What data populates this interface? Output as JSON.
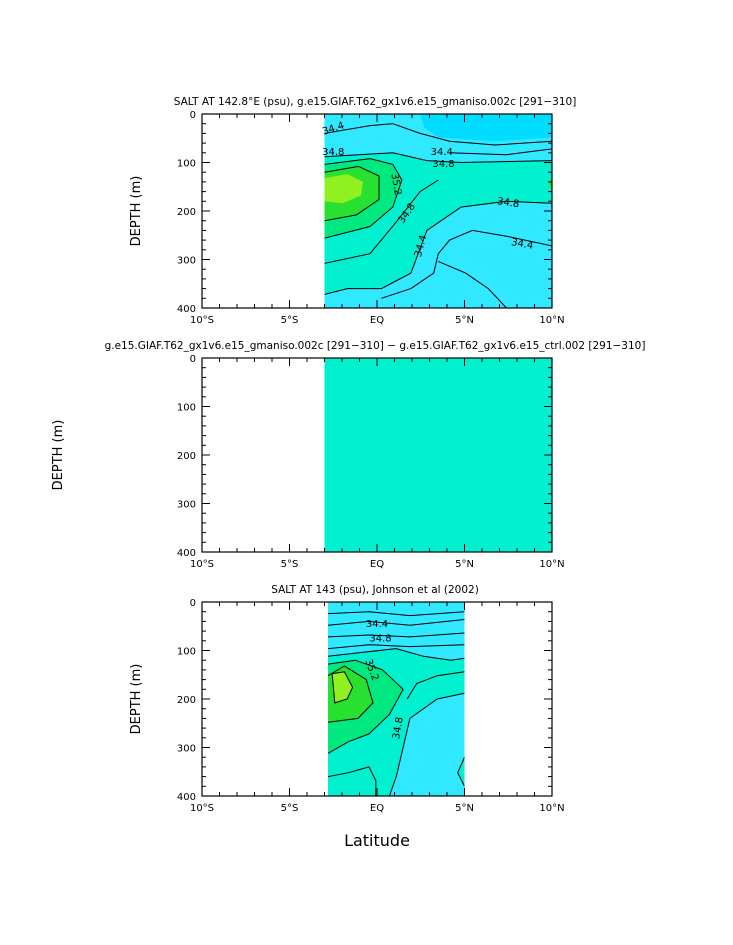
{
  "chart_data": [
    {
      "type": "contour",
      "title": "SALT AT 142.8°E (psu), g.e15.GIAF.T62_gx1v6.e15_gmaniso.002c [291−310]",
      "ylabel": "DEPTH (m)",
      "xlabel": "",
      "x_ticks": [
        {
          "v": -10,
          "label": "10°S"
        },
        {
          "v": -5,
          "label": "5°S"
        },
        {
          "v": 0,
          "label": "EQ"
        },
        {
          "v": 5,
          "label": "5°N"
        },
        {
          "v": 10,
          "label": "10°N"
        }
      ],
      "y_ticks": [
        {
          "v": 0,
          "label": "0"
        },
        {
          "v": 100,
          "label": "100"
        },
        {
          "v": 200,
          "label": "200"
        },
        {
          "v": 300,
          "label": "300"
        },
        {
          "v": 400,
          "label": "400"
        }
      ],
      "xlim": [
        -10,
        10
      ],
      "ylim": [
        0,
        400
      ],
      "data_lat_range": [
        -3,
        10
      ],
      "contour_labels": [
        {
          "text": "34.4",
          "lat": -2.5,
          "depth": 30,
          "angle": -18
        },
        {
          "text": "34.4",
          "lat": 3.7,
          "depth": 78,
          "angle": 0
        },
        {
          "text": "34.8",
          "lat": -2.5,
          "depth": 78,
          "angle": 0
        },
        {
          "text": "34.8",
          "lat": 3.8,
          "depth": 103,
          "angle": 0
        },
        {
          "text": "35.2",
          "lat": 1.1,
          "depth": 145,
          "angle": 80
        },
        {
          "text": "34.8",
          "lat": 1.7,
          "depth": 205,
          "angle": -55
        },
        {
          "text": "34.8",
          "lat": 7.5,
          "depth": 183,
          "angle": 8
        },
        {
          "text": "34.4",
          "lat": 2.5,
          "depth": 272,
          "angle": -75
        },
        {
          "text": "34.4",
          "lat": 8.3,
          "depth": 268,
          "angle": 10
        }
      ]
    },
    {
      "type": "contour",
      "title": "g.e15.GIAF.T62_gx1v6.e15_gmaniso.002c [291−310] − g.e15.GIAF.T62_gx1v6.e15_ctrl.002 [291−310]",
      "ylabel": "DEPTH (m)",
      "xlabel": "",
      "x_ticks": [
        {
          "v": -10,
          "label": "10°S"
        },
        {
          "v": -5,
          "label": "5°S"
        },
        {
          "v": 0,
          "label": "EQ"
        },
        {
          "v": 5,
          "label": "5°N"
        },
        {
          "v": 10,
          "label": "10°N"
        }
      ],
      "y_ticks": [
        {
          "v": 0,
          "label": "0"
        },
        {
          "v": 100,
          "label": "100"
        },
        {
          "v": 200,
          "label": "200"
        },
        {
          "v": 300,
          "label": "300"
        },
        {
          "v": 400,
          "label": "400"
        }
      ],
      "xlim": [
        -10,
        10
      ],
      "ylim": [
        0,
        400
      ],
      "data_lat_range": [
        -3,
        10
      ],
      "fill_color": "#00f0d0"
    },
    {
      "type": "contour",
      "title": "SALT AT 143 (psu), Johnson et al (2002)",
      "ylabel": "DEPTH (m)",
      "xlabel": "Latitude",
      "x_ticks": [
        {
          "v": -10,
          "label": "10°S"
        },
        {
          "v": -5,
          "label": "5°S"
        },
        {
          "v": 0,
          "label": "EQ"
        },
        {
          "v": 5,
          "label": "5°N"
        },
        {
          "v": 10,
          "label": "10°N"
        }
      ],
      "y_ticks": [
        {
          "v": 0,
          "label": "0"
        },
        {
          "v": 100,
          "label": "100"
        },
        {
          "v": 200,
          "label": "200"
        },
        {
          "v": 300,
          "label": "300"
        },
        {
          "v": 400,
          "label": "400"
        }
      ],
      "xlim": [
        -10,
        10
      ],
      "ylim": [
        0,
        400
      ],
      "data_lat_range": [
        -2.8,
        5
      ],
      "contour_labels": [
        {
          "text": "34.4",
          "lat": 0.0,
          "depth": 45,
          "angle": 0
        },
        {
          "text": "34.8",
          "lat": 0.2,
          "depth": 75,
          "angle": 0
        },
        {
          "text": "35.2",
          "lat": -0.3,
          "depth": 140,
          "angle": 70
        },
        {
          "text": "34.8",
          "lat": 1.2,
          "depth": 260,
          "angle": -80
        }
      ]
    }
  ],
  "colors": {
    "low": "#00dcff",
    "mid_low": "#30e8ff",
    "mid": "#00f0d0",
    "mid_high": "#00e880",
    "high": "#28e030",
    "max": "#90f020"
  }
}
